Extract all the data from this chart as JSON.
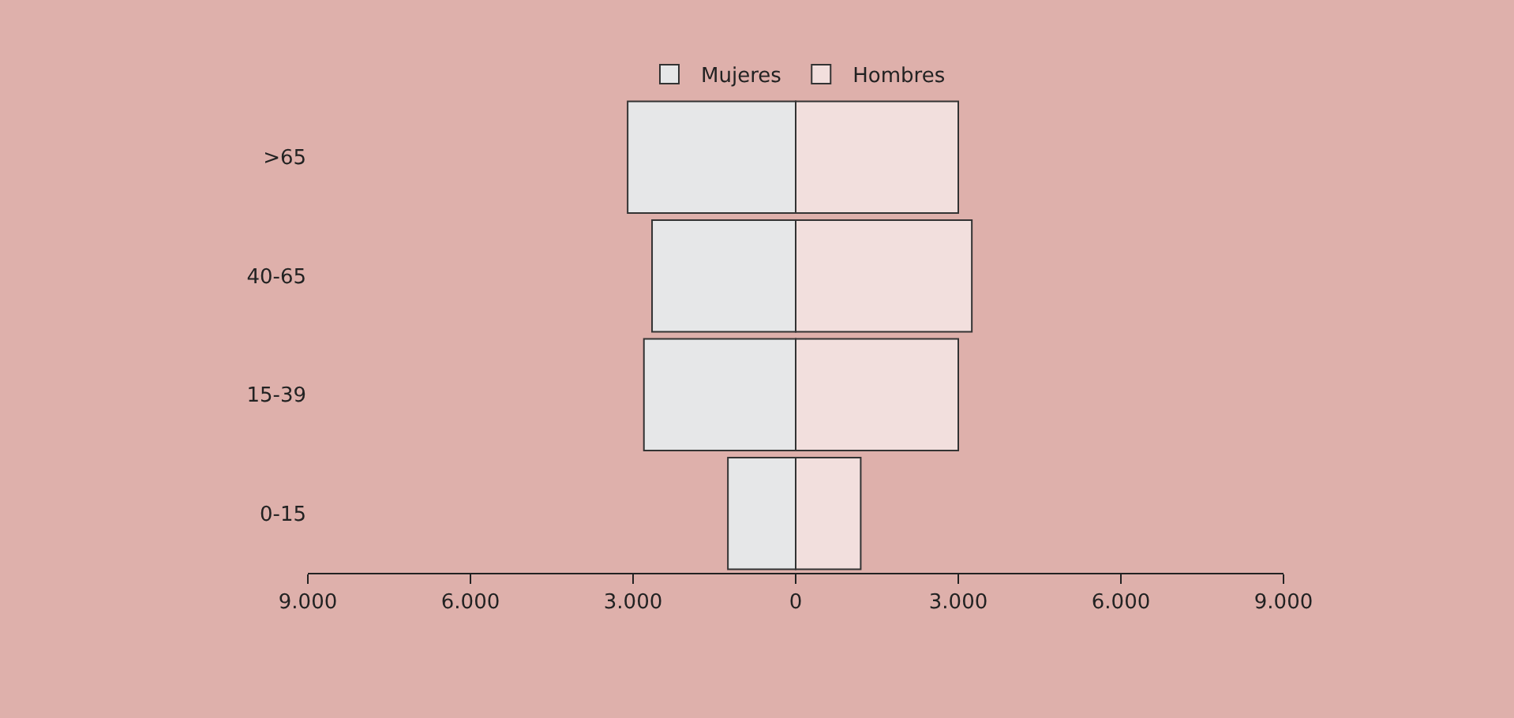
{
  "chart_data": {
    "type": "bar",
    "orientation": "horizontal",
    "stacked": true,
    "categories": [
      ">65",
      "40-65",
      "15-39",
      "0-15"
    ],
    "series": [
      {
        "name": "Mujeres",
        "color": "#e6e7e8",
        "values": [
          -3100,
          -2650,
          -2800,
          -1250
        ]
      },
      {
        "name": "Hombres",
        "color": "#f2dfdd",
        "values": [
          3000,
          3250,
          3000,
          1200
        ]
      }
    ],
    "xlim": [
      -9000,
      9000
    ],
    "xticks": [
      {
        "value": -9000,
        "label": "9.000"
      },
      {
        "value": -6000,
        "label": "6.000"
      },
      {
        "value": -3000,
        "label": "3.000"
      },
      0,
      {
        "value": 3000,
        "label": "3.000"
      },
      {
        "value": 6000,
        "label": "6.000"
      },
      {
        "value": 9000,
        "label": "9.000"
      }
    ],
    "grid": false,
    "legend": "top"
  }
}
